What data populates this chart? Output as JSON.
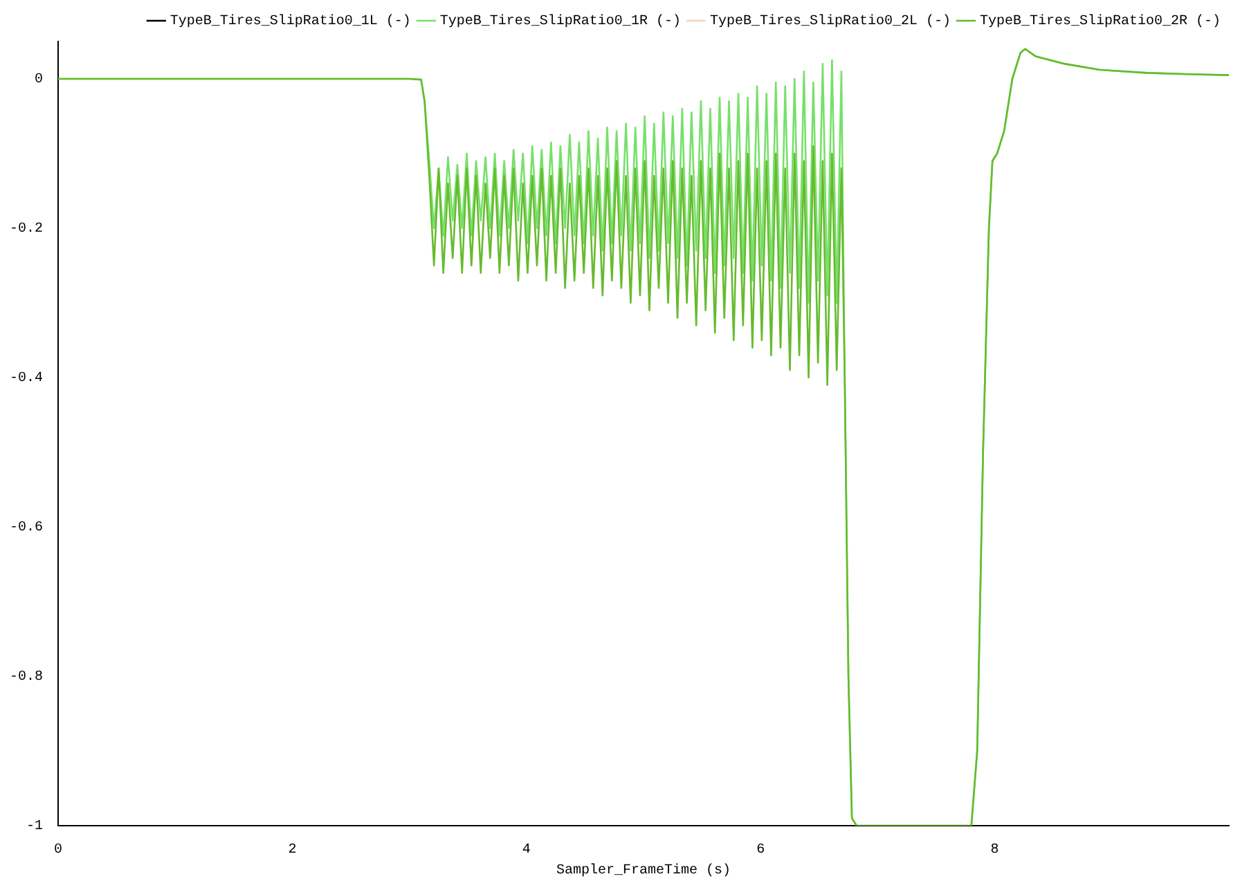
{
  "chart_data": {
    "type": "line",
    "xlabel": "Sampler_FrameTime (s)",
    "xlim": [
      0,
      10
    ],
    "ylim": [
      -1,
      0.05
    ],
    "xticks": [
      0,
      2,
      4,
      6,
      8
    ],
    "yticks": [
      -1,
      -0.8,
      -0.6,
      -0.4,
      -0.2,
      0
    ],
    "grid": false,
    "legend": "top right",
    "marker": "none",
    "line_style": "solid",
    "x": [
      0,
      3.0,
      3.1,
      3.13,
      3.17,
      3.21,
      3.25,
      3.29,
      3.33,
      3.37,
      3.41,
      3.45,
      3.49,
      3.53,
      3.57,
      3.61,
      3.65,
      3.69,
      3.73,
      3.77,
      3.81,
      3.85,
      3.89,
      3.93,
      3.97,
      4.01,
      4.05,
      4.09,
      4.13,
      4.17,
      4.21,
      4.25,
      4.29,
      4.33,
      4.37,
      4.41,
      4.45,
      4.49,
      4.53,
      4.57,
      4.61,
      4.65,
      4.69,
      4.73,
      4.77,
      4.81,
      4.85,
      4.89,
      4.93,
      4.97,
      5.01,
      5.05,
      5.09,
      5.13,
      5.17,
      5.21,
      5.25,
      5.29,
      5.33,
      5.37,
      5.41,
      5.45,
      5.49,
      5.53,
      5.57,
      5.61,
      5.65,
      5.69,
      5.73,
      5.77,
      5.81,
      5.85,
      5.89,
      5.93,
      5.97,
      6.01,
      6.05,
      6.09,
      6.13,
      6.17,
      6.21,
      6.25,
      6.29,
      6.33,
      6.37,
      6.41,
      6.45,
      6.49,
      6.53,
      6.57,
      6.61,
      6.65,
      6.69,
      6.72,
      6.75,
      6.78,
      6.82,
      7.8,
      7.85,
      7.9,
      7.95,
      7.98,
      8.02,
      8.08,
      8.15,
      8.22,
      8.26,
      8.35,
      8.6,
      8.9,
      9.3,
      9.7,
      10
    ],
    "series": [
      {
        "name": "TypeB_Tires_SlipRatio0_1L (-)",
        "color": "#000000",
        "values": [
          null,
          null,
          null,
          null,
          null,
          null,
          null,
          null,
          null,
          null,
          null,
          null,
          null,
          null,
          null,
          null,
          null,
          null,
          null,
          null,
          null,
          null,
          null,
          null,
          null,
          null,
          null,
          null,
          null,
          null,
          null,
          null,
          null,
          null,
          null,
          null,
          null,
          null,
          null,
          null,
          null,
          null,
          null,
          null,
          null,
          null,
          null,
          null,
          null,
          null,
          null,
          null,
          null,
          null,
          null,
          null,
          null,
          null,
          null,
          null,
          null,
          null,
          null,
          null,
          null,
          null,
          null,
          null,
          null,
          null,
          null,
          null,
          null,
          null,
          null,
          null,
          null,
          null,
          null,
          null,
          null,
          null,
          null,
          null,
          null,
          null,
          null,
          null,
          null,
          null,
          null,
          null,
          null,
          null,
          null,
          null,
          null,
          null,
          null,
          null,
          null,
          null,
          null,
          null,
          null,
          null,
          null,
          null,
          null,
          null,
          null,
          null,
          null
        ]
      },
      {
        "name": "TypeB_Tires_SlipRatio0_1R (-)",
        "color": "#77e06a",
        "values": [
          0,
          0,
          -0.001,
          -0.03,
          -0.11,
          -0.2,
          -0.12,
          -0.21,
          -0.105,
          -0.19,
          -0.115,
          -0.2,
          -0.1,
          -0.21,
          -0.11,
          -0.19,
          -0.105,
          -0.2,
          -0.1,
          -0.21,
          -0.11,
          -0.2,
          -0.095,
          -0.19,
          -0.1,
          -0.22,
          -0.09,
          -0.2,
          -0.095,
          -0.21,
          -0.085,
          -0.22,
          -0.09,
          -0.2,
          -0.075,
          -0.21,
          -0.085,
          -0.22,
          -0.07,
          -0.21,
          -0.08,
          -0.23,
          -0.065,
          -0.22,
          -0.07,
          -0.21,
          -0.06,
          -0.23,
          -0.065,
          -0.22,
          -0.05,
          -0.24,
          -0.06,
          -0.23,
          -0.045,
          -0.22,
          -0.05,
          -0.24,
          -0.04,
          -0.25,
          -0.045,
          -0.23,
          -0.03,
          -0.24,
          -0.04,
          -0.26,
          -0.025,
          -0.25,
          -0.03,
          -0.24,
          -0.02,
          -0.26,
          -0.025,
          -0.27,
          -0.01,
          -0.25,
          -0.02,
          -0.27,
          -0.005,
          -0.28,
          -0.01,
          -0.26,
          0.0,
          -0.28,
          0.01,
          -0.3,
          -0.005,
          -0.27,
          0.02,
          -0.29,
          0.025,
          -0.3,
          0.01,
          -0.42,
          -0.8,
          -0.99,
          -1,
          -1,
          -0.9,
          -0.5,
          -0.2,
          -0.11,
          -0.1,
          -0.07,
          0.0,
          0.035,
          0.04,
          0.03,
          0.02,
          0.012,
          0.008,
          0.006,
          0.005
        ]
      },
      {
        "name": "TypeB_Tires_SlipRatio0_2L (-)",
        "color": "#f5d5c0",
        "values": [
          null,
          null,
          null,
          null,
          null,
          null,
          null,
          null,
          null,
          null,
          null,
          null,
          null,
          null,
          null,
          null,
          null,
          null,
          null,
          null,
          null,
          null,
          null,
          null,
          null,
          null,
          null,
          null,
          null,
          null,
          null,
          null,
          null,
          null,
          null,
          null,
          null,
          null,
          null,
          null,
          null,
          null,
          null,
          null,
          null,
          null,
          null,
          null,
          null,
          null,
          null,
          null,
          null,
          null,
          null,
          null,
          null,
          null,
          null,
          null,
          null,
          null,
          null,
          null,
          null,
          null,
          null,
          null,
          null,
          null,
          null,
          null,
          null,
          null,
          null,
          null,
          null,
          null,
          null,
          null,
          null,
          null,
          null,
          null,
          null,
          null,
          null,
          null,
          null,
          null,
          null,
          null,
          null,
          null,
          null,
          null,
          null,
          null,
          null,
          null,
          null,
          null,
          null,
          null,
          null,
          null,
          null,
          null,
          null,
          null,
          null,
          null,
          null
        ]
      },
      {
        "name": "TypeB_Tires_SlipRatio0_2R (-)",
        "color": "#66bb2e",
        "values": [
          0,
          0,
          -0.001,
          -0.03,
          -0.13,
          -0.25,
          -0.12,
          -0.26,
          -0.14,
          -0.24,
          -0.13,
          -0.26,
          -0.12,
          -0.25,
          -0.13,
          -0.26,
          -0.14,
          -0.24,
          -0.12,
          -0.26,
          -0.13,
          -0.25,
          -0.12,
          -0.27,
          -0.14,
          -0.26,
          -0.13,
          -0.25,
          -0.12,
          -0.27,
          -0.13,
          -0.26,
          -0.12,
          -0.28,
          -0.14,
          -0.27,
          -0.13,
          -0.26,
          -0.12,
          -0.28,
          -0.13,
          -0.29,
          -0.12,
          -0.27,
          -0.11,
          -0.28,
          -0.13,
          -0.3,
          -0.12,
          -0.29,
          -0.11,
          -0.31,
          -0.13,
          -0.28,
          -0.12,
          -0.3,
          -0.11,
          -0.32,
          -0.12,
          -0.3,
          -0.13,
          -0.33,
          -0.11,
          -0.31,
          -0.12,
          -0.34,
          -0.1,
          -0.32,
          -0.12,
          -0.35,
          -0.11,
          -0.33,
          -0.1,
          -0.36,
          -0.12,
          -0.35,
          -0.11,
          -0.37,
          -0.1,
          -0.36,
          -0.12,
          -0.39,
          -0.1,
          -0.37,
          -0.11,
          -0.4,
          -0.09,
          -0.38,
          -0.11,
          -0.41,
          -0.1,
          -0.39,
          -0.12,
          -0.42,
          -0.8,
          -0.99,
          -1,
          -1,
          -0.9,
          -0.5,
          -0.2,
          -0.11,
          -0.1,
          -0.07,
          0.0,
          0.035,
          0.04,
          0.03,
          0.02,
          0.012,
          0.008,
          0.006,
          0.005
        ]
      }
    ]
  }
}
